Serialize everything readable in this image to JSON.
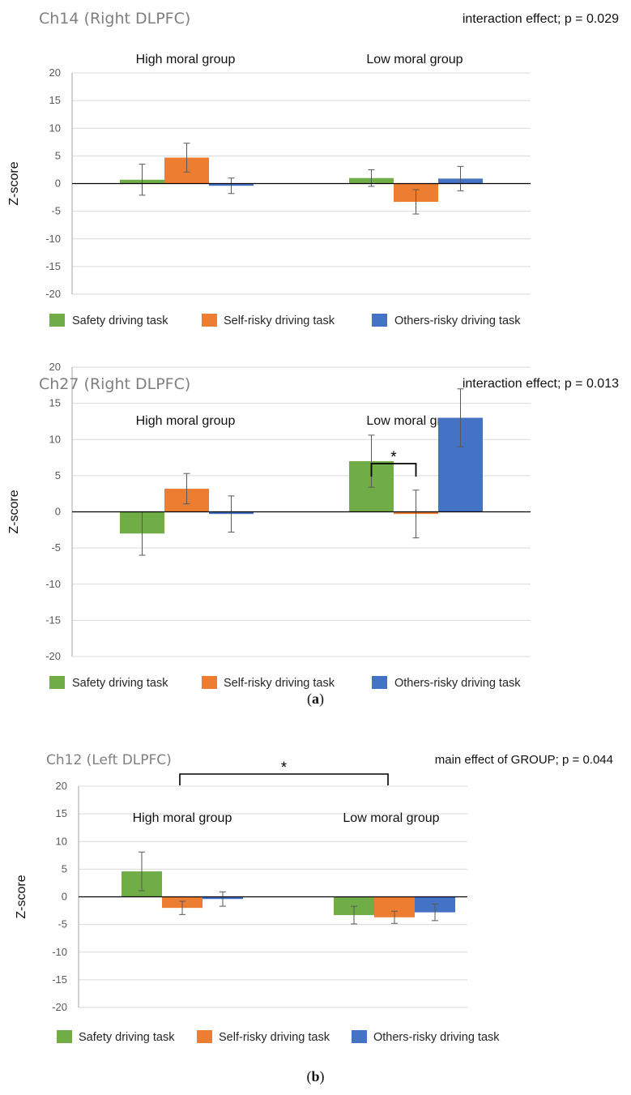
{
  "legend": {
    "safety": "Safety driving task",
    "self": "Self-risky driving task",
    "others": "Others-risky driving task"
  },
  "colors": {
    "safety": "#70ad47",
    "self": "#ed7d31",
    "others": "#4472c4"
  },
  "captions": {
    "a": "a",
    "b": "b"
  },
  "chart_data": [
    {
      "type": "bar",
      "title": "Ch14 (Right DLPFC)",
      "annotation": "interaction effect; p = 0.029",
      "ylabel": "Z-score",
      "ylim": [
        -20,
        20
      ],
      "yticks": [
        "20",
        "15",
        "10",
        "5",
        "0",
        "-5",
        "-10",
        "-15",
        "-20"
      ],
      "categories": [
        "High moral group",
        "Low moral group"
      ],
      "series": [
        {
          "name": "Safety driving task",
          "values": [
            0.7,
            1.0
          ],
          "errors": [
            2.8,
            1.5
          ]
        },
        {
          "name": "Self-risky driving task",
          "values": [
            4.7,
            -3.3
          ],
          "errors": [
            2.6,
            2.2
          ]
        },
        {
          "name": "Others-risky driving task",
          "values": [
            -0.4,
            0.9
          ],
          "errors": [
            1.4,
            2.2
          ]
        }
      ],
      "significance": []
    },
    {
      "type": "bar",
      "title": "Ch27 (Right DLPFC)",
      "annotation": "interaction effect; p = 0.013",
      "ylabel": "Z-score",
      "ylim": [
        -20,
        20
      ],
      "yticks": [
        "20",
        "15",
        "10",
        "5",
        "0",
        "-5",
        "-10",
        "-15",
        "-20"
      ],
      "categories": [
        "High moral group",
        "Low moral group"
      ],
      "series": [
        {
          "name": "Safety driving task",
          "values": [
            -3.0,
            7.0
          ],
          "errors": [
            3.0,
            3.6
          ]
        },
        {
          "name": "Self-risky driving task",
          "values": [
            3.2,
            -0.3
          ],
          "errors": [
            2.1,
            3.3
          ]
        },
        {
          "name": "Others-risky driving task",
          "values": [
            -0.3,
            13.0
          ],
          "errors": [
            2.5,
            4.0
          ]
        }
      ],
      "significance": [
        {
          "label": "*",
          "between": "Safety vs Self-risky (Low moral group)"
        }
      ]
    },
    {
      "type": "bar",
      "title": "Ch12 (Left DLPFC)",
      "annotation": "main effect of GROUP; p = 0.044",
      "ylabel": "Z-score",
      "ylim": [
        -20,
        20
      ],
      "yticks": [
        "20",
        "15",
        "10",
        "5",
        "0",
        "-5",
        "-10",
        "-15",
        "-20"
      ],
      "categories": [
        "High moral group",
        "Low moral group"
      ],
      "series": [
        {
          "name": "Safety driving task",
          "values": [
            4.6,
            -3.3
          ],
          "errors": [
            3.5,
            1.6
          ]
        },
        {
          "name": "Self-risky driving task",
          "values": [
            -2.0,
            -3.7
          ],
          "errors": [
            1.2,
            1.1
          ]
        },
        {
          "name": "Others-risky driving task",
          "values": [
            -0.4,
            -2.8
          ],
          "errors": [
            1.3,
            1.5
          ]
        }
      ],
      "significance": [
        {
          "label": "*",
          "between": "High moral group vs Low moral group"
        }
      ]
    }
  ]
}
